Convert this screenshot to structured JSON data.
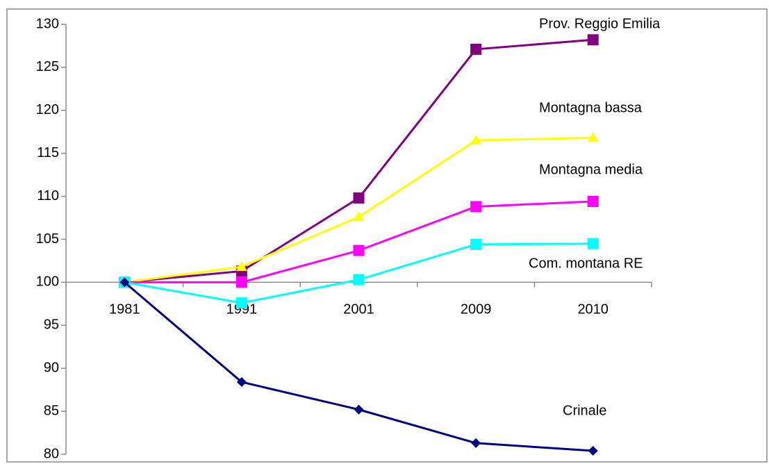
{
  "chart_data": {
    "type": "line",
    "categories": [
      "1981",
      "1991",
      "2001",
      "2009",
      "2010"
    ],
    "series": [
      {
        "name": "Prov. Reggio Emilia",
        "color": "#800080",
        "marker": "square",
        "values": [
          100,
          101.3,
          109.8,
          127.1,
          128.2
        ]
      },
      {
        "name": "Montagna bassa",
        "color": "#FFFF00",
        "marker": "triangle",
        "values": [
          100,
          101.8,
          107.6,
          116.5,
          116.8
        ]
      },
      {
        "name": "Montagna media",
        "color": "#FF00FF",
        "marker": "square",
        "values": [
          100,
          100,
          103.7,
          108.8,
          109.4
        ]
      },
      {
        "name": "Com. montana RE",
        "color": "#00FFFF",
        "marker": "square",
        "values": [
          100,
          97.6,
          100.3,
          104.4,
          104.5
        ]
      },
      {
        "name": "Crinale",
        "color": "#000080",
        "marker": "diamond",
        "values": [
          100,
          88.4,
          85.2,
          81.3,
          80.4
        ]
      }
    ],
    "ylim": [
      80,
      130
    ],
    "yticks": [
      80,
      85,
      90,
      95,
      100,
      105,
      110,
      115,
      120,
      125,
      130
    ],
    "x_axis_at": 100,
    "grid": false
  }
}
